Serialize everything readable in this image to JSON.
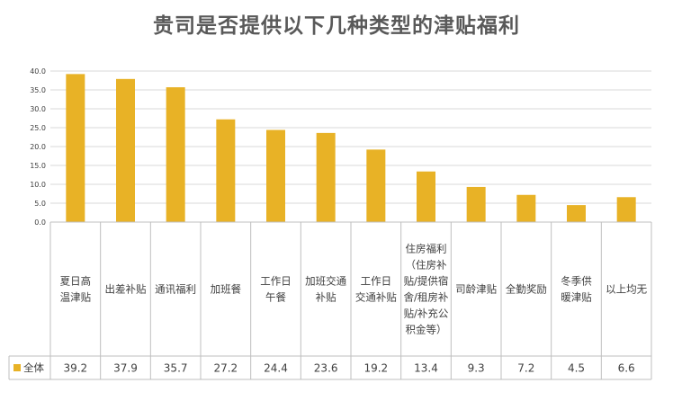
{
  "chart_data": {
    "type": "bar",
    "title": "贵司是否提供以下几种类型的津贴福利",
    "xlabel": "",
    "ylabel": "",
    "ylim": [
      0,
      40
    ],
    "yticks": [
      "0.0",
      "5.0",
      "10.0",
      "15.0",
      "20.0",
      "25.0",
      "30.0",
      "35.0",
      "40.0"
    ],
    "grid": true,
    "legend": "bottom-left (data table)",
    "categories": [
      [
        "夏日高",
        "温津贴"
      ],
      [
        "出差补贴"
      ],
      [
        "通讯福利"
      ],
      [
        "加班餐"
      ],
      [
        "工作日",
        "午餐"
      ],
      [
        "加班交通",
        "补贴"
      ],
      [
        "工作日",
        "交通补贴"
      ],
      [
        "住房福利",
        "（住房补",
        "贴/提供宿",
        "舍/租房补",
        "贴/补充公",
        "积金等）"
      ],
      [
        "司龄津贴"
      ],
      [
        "全勤奖励"
      ],
      [
        "冬季供",
        "暖津贴"
      ],
      [
        "以上均无"
      ]
    ],
    "series": [
      {
        "name": "全体",
        "color": "#E8B226",
        "values": [
          39.2,
          37.9,
          35.7,
          27.2,
          24.4,
          23.6,
          19.2,
          13.4,
          9.3,
          7.2,
          4.5,
          6.6
        ],
        "labels": [
          "39.2",
          "37.9",
          "35.7",
          "27.2",
          "24.4",
          "23.6",
          "19.2",
          "13.4",
          "9.3",
          "7.2",
          "4.5",
          "6.6"
        ]
      }
    ]
  }
}
